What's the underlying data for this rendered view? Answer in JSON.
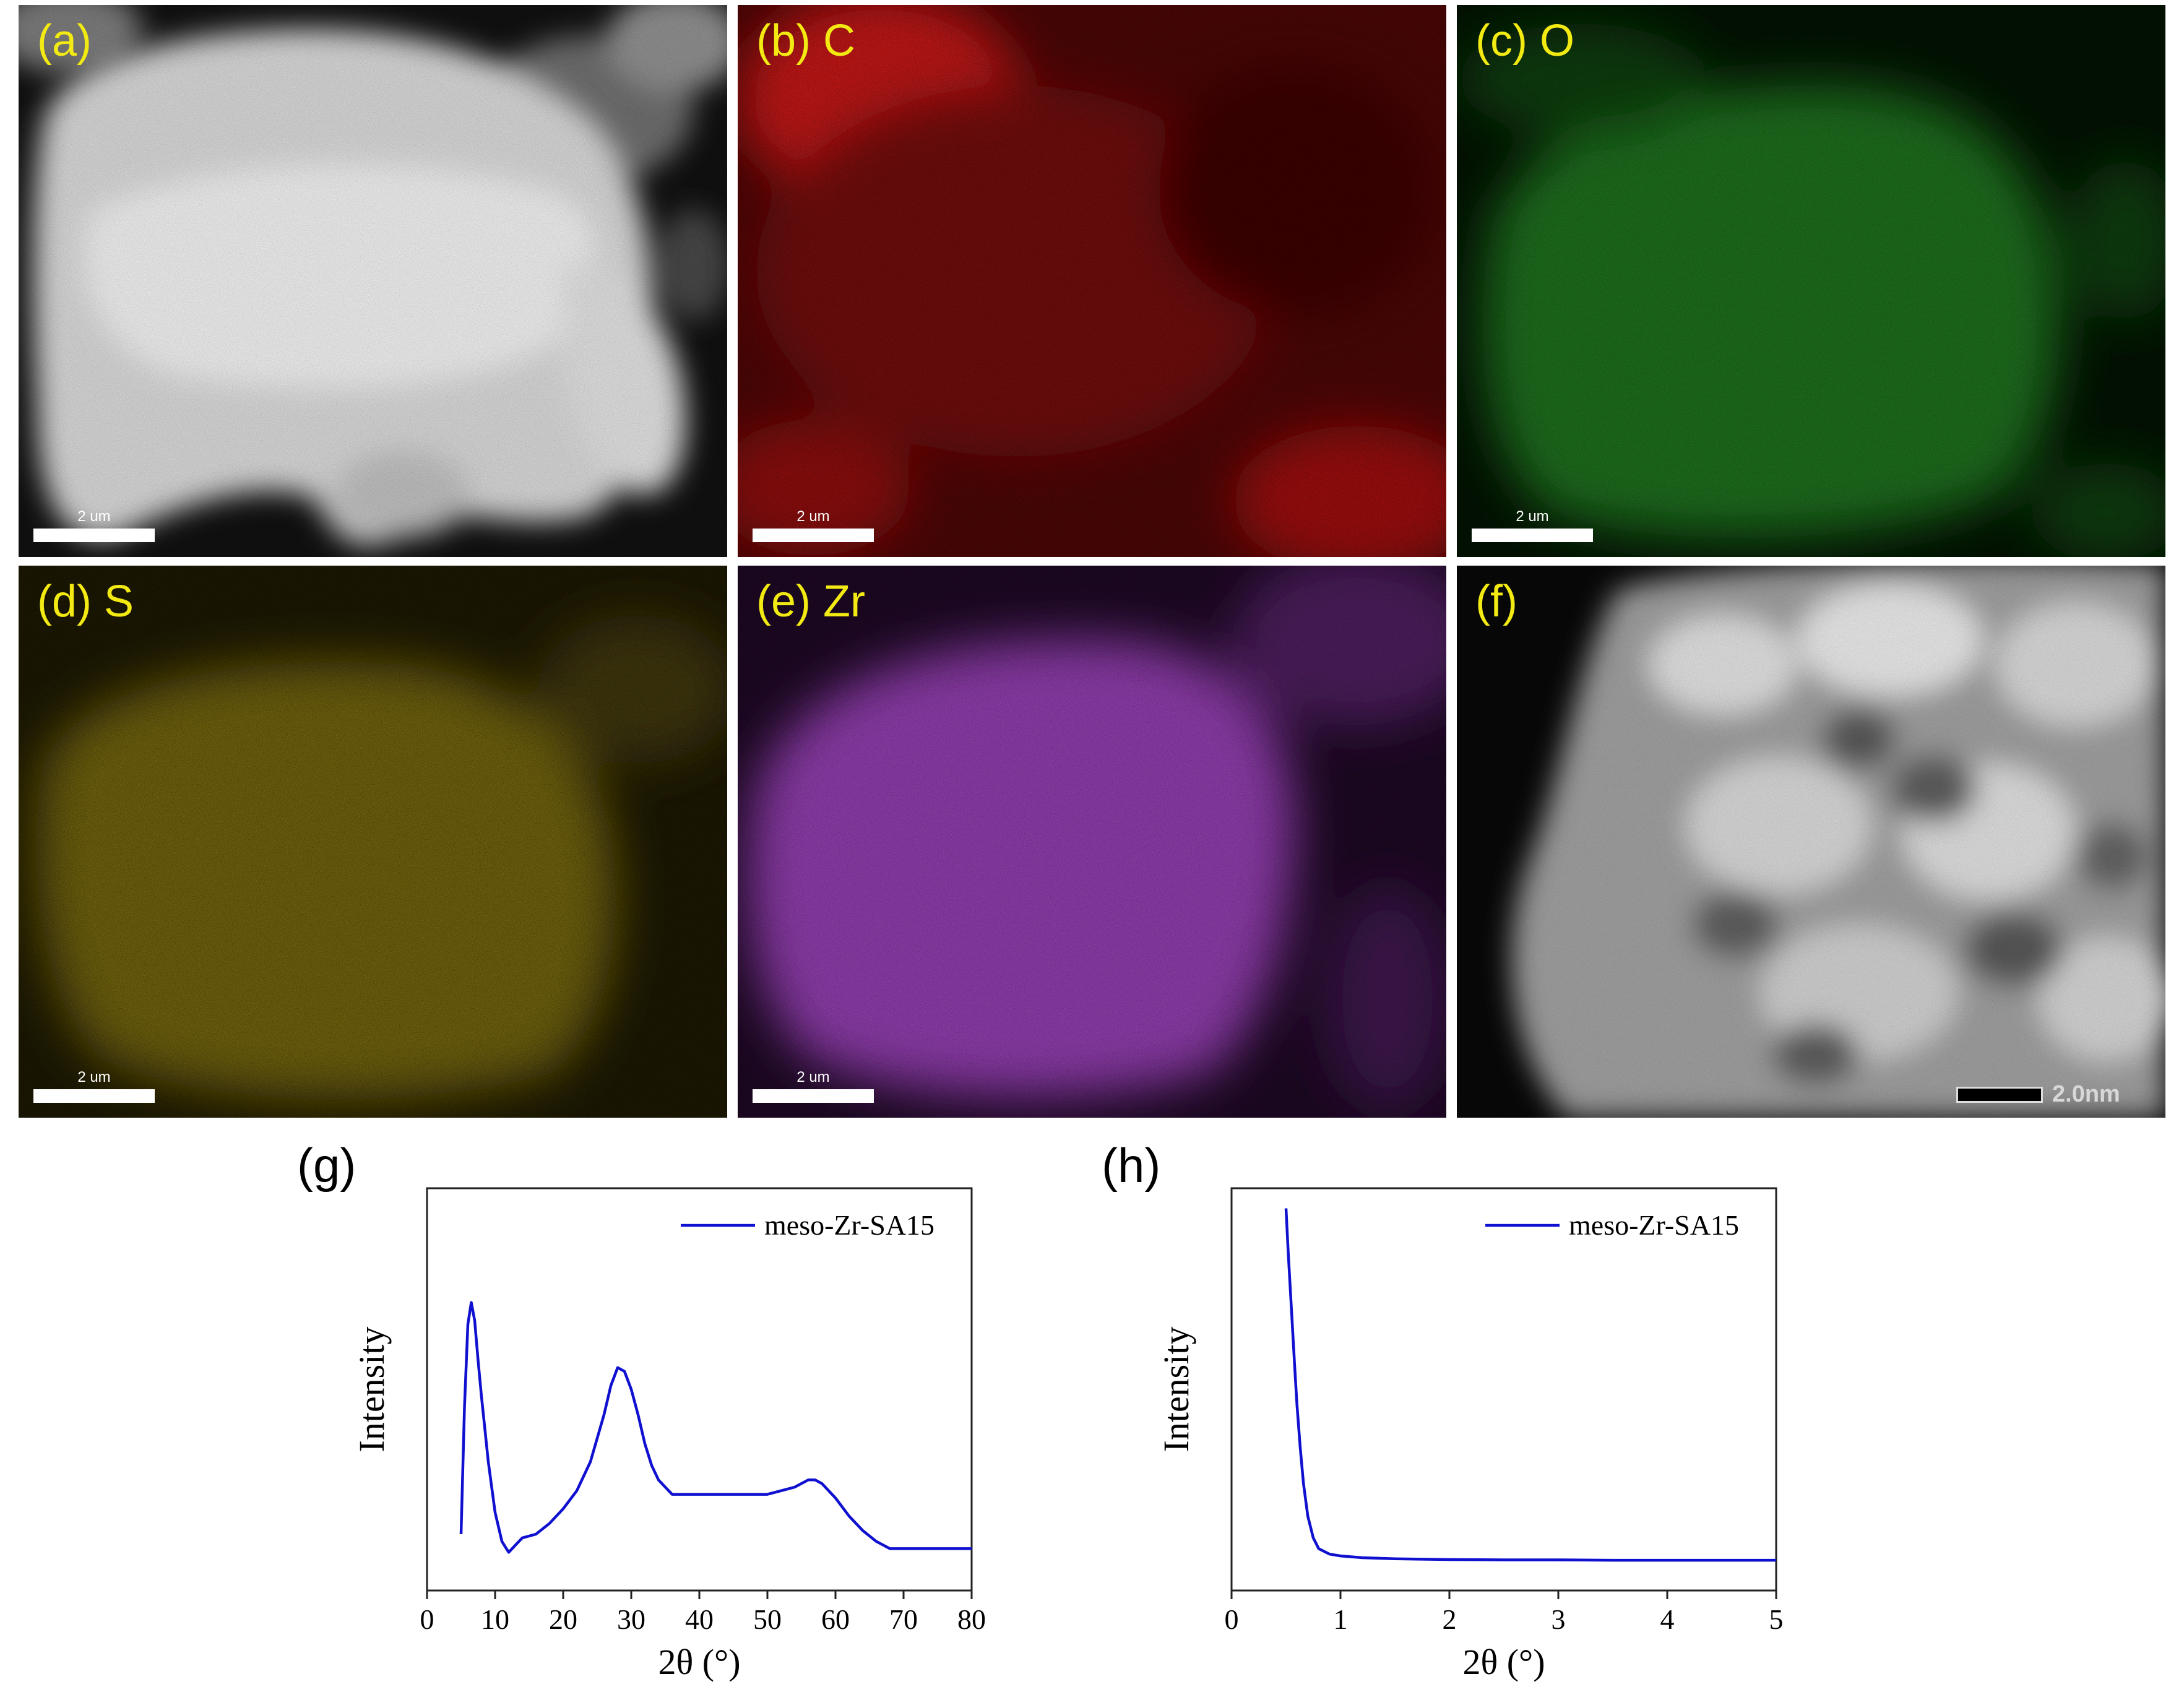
{
  "panels": [
    {
      "id": "a",
      "label": "(a)",
      "scale": "2 um"
    },
    {
      "id": "b",
      "label": "(b) C",
      "scale": "2 um",
      "color": "#c01010"
    },
    {
      "id": "c",
      "label": "(c) O",
      "scale": "2 um",
      "color": "#1e8a1e"
    },
    {
      "id": "d",
      "label": "(d) S",
      "scale": "2 um",
      "color": "#c8b414"
    },
    {
      "id": "e",
      "label": "(e) Zr",
      "scale": "2 um",
      "color": "#9a3ab0"
    },
    {
      "id": "f",
      "label": "(f)",
      "scale": "2.0nm"
    }
  ],
  "chart_data": [
    {
      "type": "line",
      "panel_label": "(g)",
      "xlabel": "2θ (°)",
      "ylabel": "Intensity",
      "xlim": [
        0,
        80
      ],
      "xticks": [
        0,
        10,
        20,
        30,
        40,
        50,
        60,
        70,
        80
      ],
      "legend": "top-right",
      "series": [
        {
          "name": "meso-Zr-SA15",
          "color": "#1010d0",
          "x": [
            5,
            5.5,
            6,
            6.5,
            7,
            7.5,
            8,
            9,
            10,
            11,
            12,
            13,
            14,
            16,
            18,
            20,
            22,
            24,
            26,
            27,
            28,
            29,
            30,
            31,
            32,
            33,
            34,
            35,
            36,
            38,
            40,
            45,
            50,
            52,
            54,
            56,
            57,
            58,
            60,
            62,
            64,
            66,
            68,
            70,
            75,
            80
          ],
          "y": [
            0.1,
            0.45,
            0.68,
            0.74,
            0.69,
            0.58,
            0.48,
            0.3,
            0.16,
            0.08,
            0.05,
            0.07,
            0.09,
            0.1,
            0.13,
            0.17,
            0.22,
            0.3,
            0.43,
            0.51,
            0.56,
            0.55,
            0.5,
            0.43,
            0.35,
            0.29,
            0.25,
            0.23,
            0.21,
            0.21,
            0.21,
            0.21,
            0.21,
            0.22,
            0.23,
            0.25,
            0.25,
            0.24,
            0.2,
            0.15,
            0.11,
            0.08,
            0.06,
            0.06,
            0.06,
            0.06
          ]
        }
      ]
    },
    {
      "type": "line",
      "panel_label": "(h)",
      "xlabel": "2θ (°)",
      "ylabel": "Intensity",
      "xlim": [
        0,
        5
      ],
      "xticks": [
        0,
        1,
        2,
        3,
        4,
        5
      ],
      "legend": "top-right",
      "series": [
        {
          "name": "meso-Zr-SA15",
          "color": "#1010d0",
          "x": [
            0.5,
            0.52,
            0.55,
            0.58,
            0.6,
            0.63,
            0.66,
            0.7,
            0.75,
            0.8,
            0.9,
            1.0,
            1.2,
            1.5,
            2.0,
            2.5,
            3.0,
            3.5,
            4.0,
            4.5,
            5.0
          ],
          "y": [
            1.0,
            0.88,
            0.72,
            0.56,
            0.46,
            0.34,
            0.24,
            0.15,
            0.09,
            0.06,
            0.045,
            0.04,
            0.035,
            0.032,
            0.03,
            0.029,
            0.029,
            0.028,
            0.028,
            0.028,
            0.028
          ]
        }
      ]
    }
  ]
}
